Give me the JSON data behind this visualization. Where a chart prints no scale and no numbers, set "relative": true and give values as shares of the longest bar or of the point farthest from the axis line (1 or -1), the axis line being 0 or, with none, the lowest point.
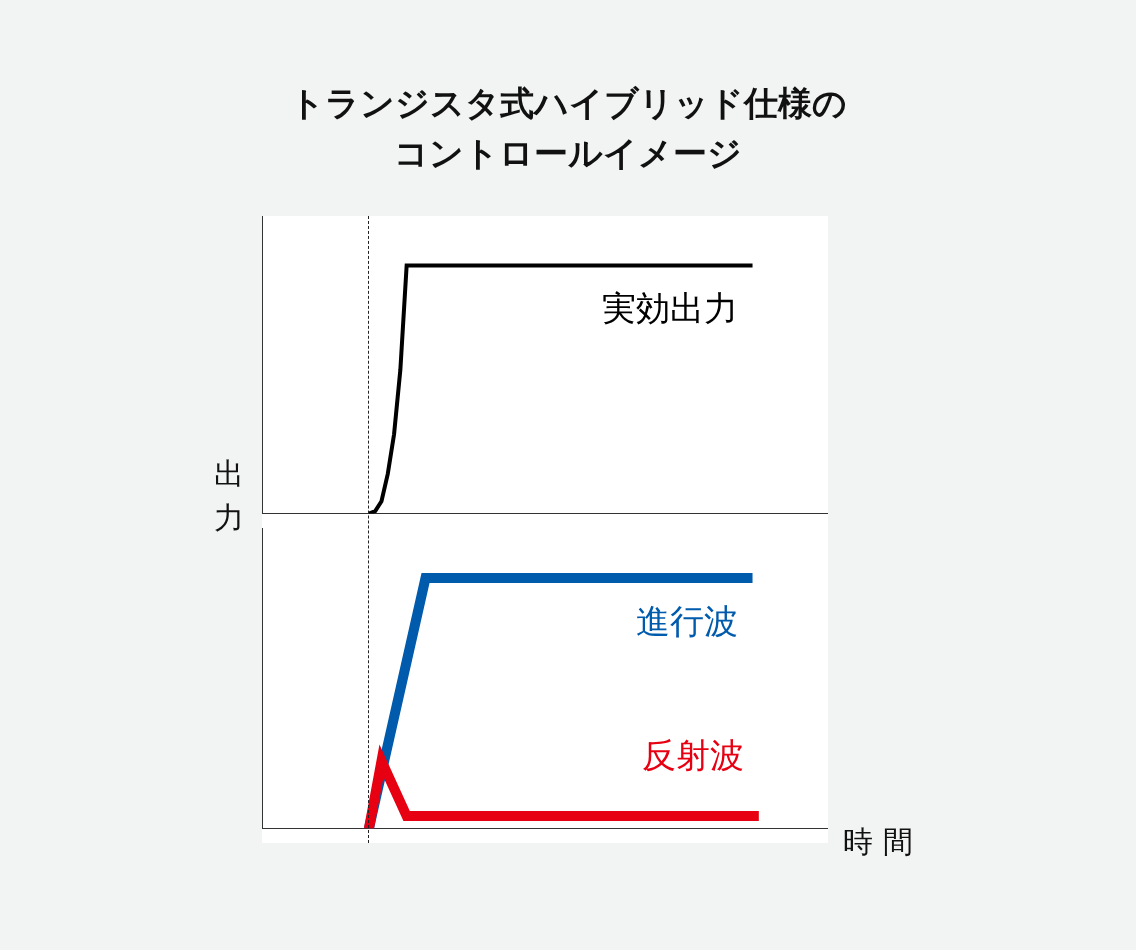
{
  "chart_data": [
    {
      "type": "line",
      "title": "トランジスタ式ハイブリッド仕様のコントロールイメージ",
      "ylabel": "出力",
      "relative": true,
      "legend": false,
      "marker": "none",
      "categories": [
        null,
        null,
        null,
        null,
        null,
        null,
        null,
        null,
        null,
        null,
        null,
        null,
        null,
        null,
        null,
        null,
        null,
        null,
        null,
        null,
        null,
        null,
        null,
        null,
        null,
        null,
        null,
        null,
        null,
        null,
        null,
        null,
        null,
        null,
        null,
        null,
        null,
        null,
        null,
        null,
        null,
        null,
        null,
        null,
        null,
        null,
        null,
        null,
        null,
        null,
        null,
        null,
        null,
        null,
        null,
        null,
        null,
        null,
        null,
        null,
        null,
        null,
        null,
        null,
        null,
        null,
        null,
        null,
        null,
        null,
        null,
        null,
        null,
        null,
        null,
        null,
        null,
        null,
        null,
        null,
        null,
        null,
        null,
        null,
        null,
        null,
        null,
        null,
        null,
        null,
        null
      ],
      "series": [
        {
          "name": "実効出力",
          "color": "#000000",
          "values": [
            null,
            null,
            null,
            null,
            null,
            null,
            null,
            null,
            null,
            null,
            null,
            null,
            null,
            null,
            null,
            null,
            null,
            0,
            0.01,
            0.05,
            0.16,
            0.32,
            0.58,
            1,
            null,
            null,
            null,
            null,
            null,
            null,
            null,
            null,
            null,
            null,
            null,
            null,
            null,
            null,
            null,
            null,
            null,
            null,
            null,
            null,
            null,
            null,
            null,
            null,
            null,
            null,
            null,
            null,
            null,
            null,
            null,
            null,
            null,
            null,
            null,
            null,
            null,
            null,
            null,
            null,
            null,
            null,
            null,
            null,
            null,
            null,
            null,
            null,
            null,
            null,
            null,
            null,
            null,
            null,
            1,
            null,
            null,
            null,
            null,
            null,
            null,
            null,
            null,
            null,
            null,
            null,
            null
          ]
        }
      ]
    },
    {
      "type": "line",
      "xlabel": "時 間",
      "relative": true,
      "legend": false,
      "marker": "none",
      "categories": [
        null,
        null,
        null,
        null,
        null,
        null,
        null,
        null,
        null,
        null,
        null,
        null,
        null,
        null,
        null,
        null,
        null,
        null,
        null,
        null,
        null,
        null,
        null,
        null,
        null,
        null,
        null,
        null,
        null,
        null,
        null,
        null,
        null,
        null,
        null,
        null,
        null,
        null,
        null,
        null,
        null,
        null,
        null,
        null,
        null,
        null,
        null,
        null,
        null,
        null,
        null,
        null,
        null,
        null,
        null,
        null,
        null,
        null,
        null,
        null,
        null,
        null,
        null,
        null,
        null,
        null,
        null,
        null,
        null,
        null,
        null,
        null,
        null,
        null,
        null,
        null,
        null,
        null,
        null,
        null,
        null,
        null,
        null,
        null,
        null,
        null,
        null,
        null,
        null,
        null,
        null
      ],
      "series": [
        {
          "name": "反射波",
          "color": "#e60012",
          "values": [
            null,
            null,
            null,
            null,
            null,
            null,
            null,
            null,
            null,
            null,
            null,
            null,
            null,
            null,
            null,
            null,
            null,
            0,
            null,
            0.27,
            null,
            null,
            null,
            0.05,
            null,
            null,
            null,
            null,
            null,
            null,
            null,
            null,
            null,
            null,
            null,
            null,
            null,
            null,
            null,
            null,
            null,
            null,
            null,
            null,
            null,
            null,
            null,
            null,
            null,
            null,
            null,
            null,
            null,
            null,
            null,
            null,
            null,
            null,
            null,
            null,
            null,
            null,
            null,
            null,
            null,
            null,
            null,
            null,
            null,
            null,
            null,
            null,
            null,
            null,
            null,
            null,
            null,
            null,
            null,
            0.05,
            null,
            null,
            null,
            null,
            null,
            null,
            null,
            null,
            null,
            null,
            null
          ]
        },
        {
          "name": "進行波",
          "color": "#005bac",
          "values": [
            null,
            null,
            null,
            null,
            null,
            null,
            null,
            null,
            null,
            null,
            null,
            null,
            null,
            null,
            null,
            null,
            null,
            0,
            null,
            null,
            null,
            null,
            null,
            null,
            null,
            null,
            1,
            null,
            null,
            null,
            null,
            null,
            null,
            null,
            null,
            null,
            null,
            null,
            null,
            null,
            null,
            null,
            null,
            null,
            null,
            null,
            null,
            null,
            null,
            null,
            null,
            null,
            null,
            null,
            null,
            null,
            null,
            null,
            null,
            null,
            null,
            null,
            null,
            null,
            null,
            null,
            null,
            null,
            null,
            null,
            null,
            null,
            null,
            null,
            null,
            null,
            null,
            null,
            1,
            null,
            null,
            null,
            null,
            null,
            null,
            null,
            null,
            null,
            null,
            null,
            null
          ]
        }
      ]
    }
  ]
}
